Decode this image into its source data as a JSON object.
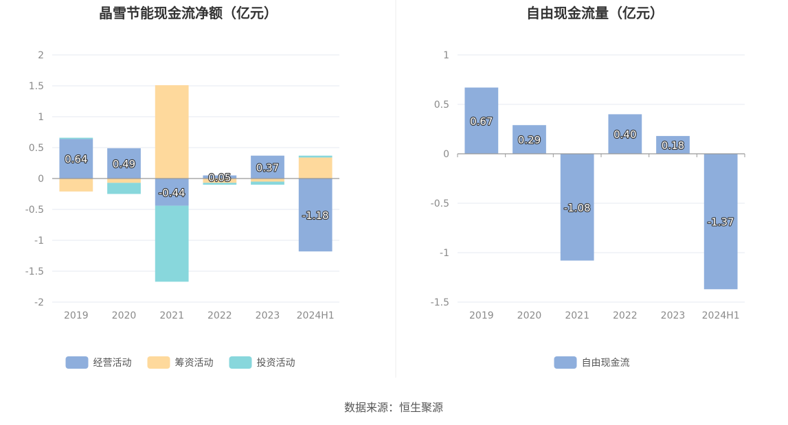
{
  "source": "数据来源：恒生聚源",
  "chart_data": [
    {
      "type": "bar",
      "stacked": true,
      "title": "晶雪节能现金流净额（亿元）",
      "categories": [
        "2019",
        "2020",
        "2021",
        "2022",
        "2023",
        "2024H1"
      ],
      "ylim": [
        -2,
        2
      ],
      "yticks": [
        2,
        1.5,
        1,
        0.5,
        0,
        -0.5,
        -1,
        -1.5,
        -2
      ],
      "grid": true,
      "legend_position": "bottom",
      "series": [
        {
          "name": "经营活动",
          "color": "#8eaedc",
          "values": [
            0.64,
            0.49,
            -0.44,
            0.05,
            0.37,
            -1.18
          ],
          "labels": [
            "0.64",
            "0.49",
            "-0.44",
            "0.05",
            "0.37",
            "-1.18"
          ]
        },
        {
          "name": "筹资活动",
          "color": "#fed99c",
          "values": [
            -0.21,
            -0.07,
            1.51,
            -0.07,
            -0.05,
            0.34
          ]
        },
        {
          "name": "投资活动",
          "color": "#88d7dc",
          "values": [
            0.02,
            -0.18,
            -1.23,
            -0.03,
            -0.05,
            0.03
          ]
        }
      ]
    },
    {
      "type": "bar",
      "title": "自由现金流量（亿元）",
      "categories": [
        "2019",
        "2020",
        "2021",
        "2022",
        "2023",
        "2024H1"
      ],
      "ylim": [
        -1.5,
        1
      ],
      "yticks": [
        1,
        0.5,
        0,
        -0.5,
        -1,
        -1.5
      ],
      "grid": true,
      "legend_position": "bottom",
      "series": [
        {
          "name": "自由现金流",
          "color": "#8eaedc",
          "values": [
            0.67,
            0.29,
            -1.08,
            0.4,
            0.18,
            -1.37
          ],
          "labels": [
            "0.67",
            "0.29",
            "-1.08",
            "0.40",
            "0.18",
            "-1.37"
          ]
        }
      ]
    }
  ]
}
